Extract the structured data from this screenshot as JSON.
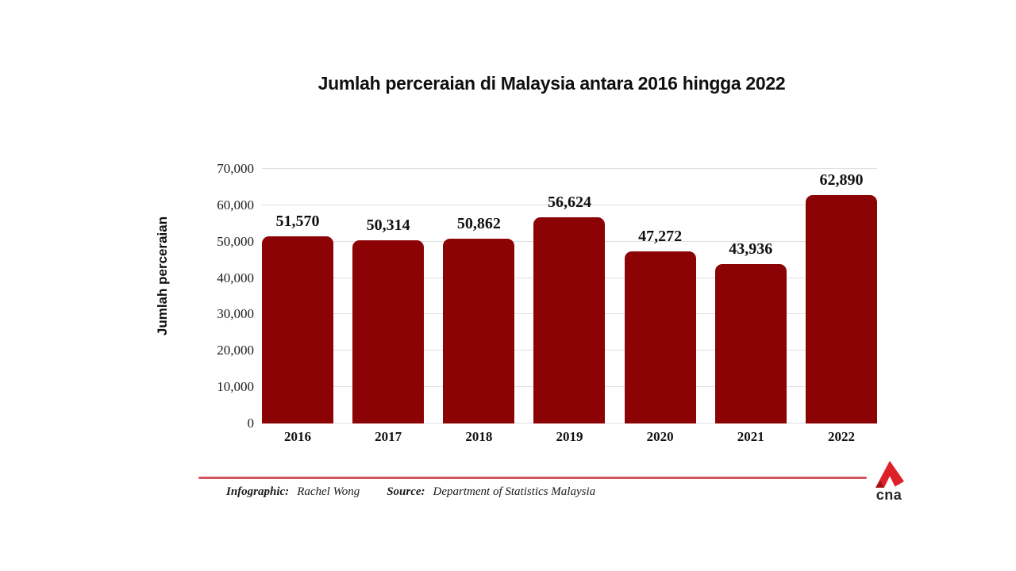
{
  "title": "Jumlah perceraian di Malaysia antara 2016 hingga 2022",
  "chart_data": {
    "type": "bar",
    "title": "Jumlah perceraian di Malaysia antara 2016 hingga 2022",
    "xlabel": "",
    "ylabel": "Jumlah perceraian",
    "categories": [
      "2016",
      "2017",
      "2018",
      "2019",
      "2020",
      "2021",
      "2022"
    ],
    "values": [
      51570,
      50314,
      50862,
      56624,
      47272,
      43936,
      62890
    ],
    "value_labels": [
      "51,570",
      "50,314",
      "50,862",
      "56,624",
      "47,272",
      "43,936",
      "62,890"
    ],
    "ylim": [
      0,
      70000
    ],
    "yticks": [
      {
        "v": 0,
        "label": "0"
      },
      {
        "v": 10000,
        "label": "10,000"
      },
      {
        "v": 20000,
        "label": "20,000"
      },
      {
        "v": 30000,
        "label": "30,000"
      },
      {
        "v": 40000,
        "label": "40,000"
      },
      {
        "v": 50000,
        "label": "50,000"
      },
      {
        "v": 60000,
        "label": "60,000"
      },
      {
        "v": 70000,
        "label": "70,000"
      }
    ],
    "grid": "horizontal",
    "legend": "none",
    "bar_color": "#8B0304"
  },
  "colors": {
    "background": "#FFFFFF",
    "gridline": "#E0E0E0",
    "text": "#111111",
    "divider": "#D4545F",
    "logo_red": "#DE2128",
    "logo_dark_red": "#A01318"
  },
  "footer": {
    "infographic_label": "Infographic:",
    "infographic_value": "Rachel Wong",
    "source_label": "Source:",
    "source_value": "Department of Statistics Malaysia"
  },
  "logo": {
    "text": "cna"
  }
}
